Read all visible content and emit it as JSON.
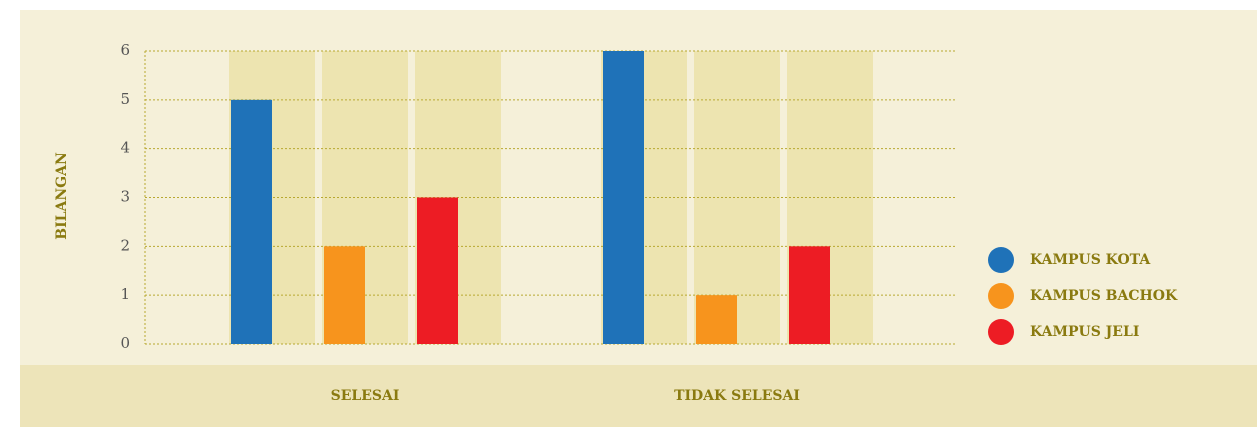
{
  "chart_data": {
    "type": "bar",
    "y_label": "BILANGAN",
    "categories": [
      "SELESAI",
      "TIDAK SELESAI"
    ],
    "series": [
      {
        "name": "KAMPUS KOTA",
        "color": "#1f72b8",
        "values": [
          5,
          6
        ]
      },
      {
        "name": "KAMPUS BACHOK",
        "color": "#f7941d",
        "values": [
          2,
          1
        ]
      },
      {
        "name": "KAMPUS JELI",
        "color": "#ed1c24",
        "values": [
          3,
          2
        ]
      }
    ],
    "ylim": [
      0,
      6
    ],
    "yticks": [
      0,
      1,
      2,
      3,
      4,
      5,
      6
    ],
    "grid": true,
    "legend": "right"
  }
}
